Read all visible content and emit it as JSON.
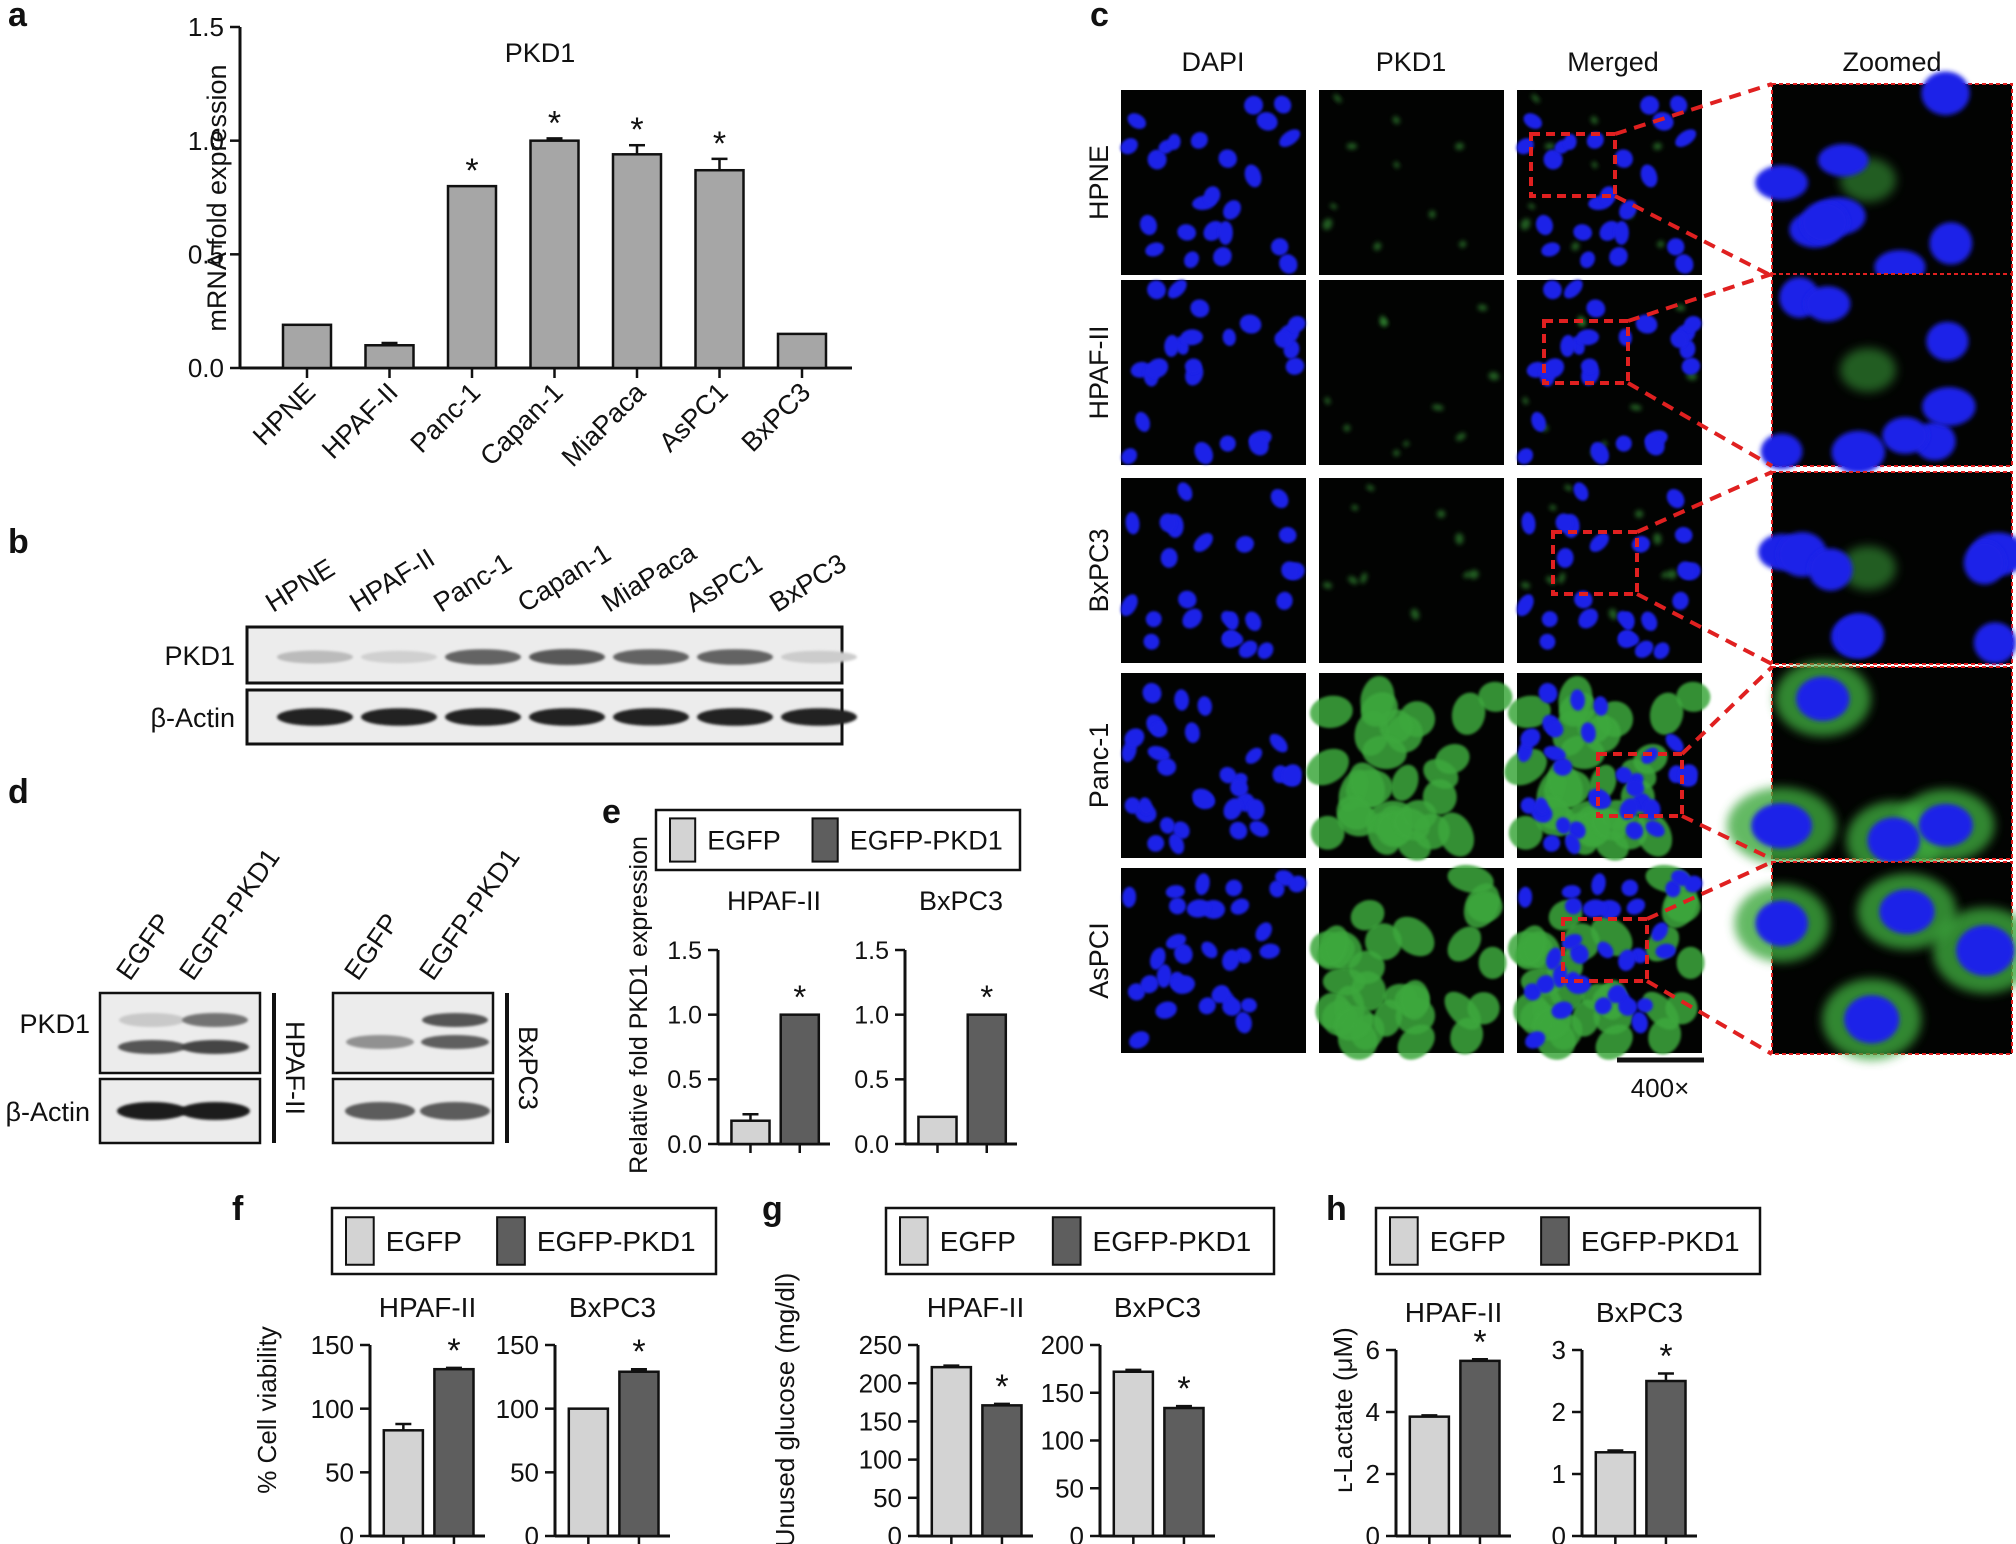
{
  "panels": {
    "a": "a",
    "b": "b",
    "c": "c",
    "d": "d",
    "e": "e",
    "f": "f",
    "g": "g",
    "h": "h"
  },
  "colors": {
    "bar_gray": "#a6a6a6",
    "egfp": "#d3d3d3",
    "egfp_pkd1": "#5e5e5e",
    "dapi_blue": "#1a22e8",
    "pkd1_green": "#3ea83e",
    "zoom_box": "#e02020"
  },
  "chart_data": [
    {
      "id": "a",
      "type": "bar",
      "title": "PKD1",
      "ylabel": "mRNA fold expression",
      "categories": [
        "HPNE",
        "HPAF-II",
        "Panc-1",
        "Capan-1",
        "MiaPaca",
        "AsPC1",
        "BxPC3"
      ],
      "values": [
        0.19,
        0.1,
        0.8,
        1.0,
        0.94,
        0.87,
        0.15
      ],
      "errors": [
        0,
        0.01,
        0,
        0.01,
        0.04,
        0.05,
        0
      ],
      "significant": [
        "",
        "",
        "*",
        "*",
        "*",
        "*",
        ""
      ],
      "ylim": [
        0,
        1.5
      ],
      "yticks": [
        "0.0",
        "0.5",
        "1.0",
        "1.5"
      ]
    },
    {
      "id": "e",
      "type": "bar",
      "ylabel": "Relative fold PKD1 expression",
      "legend": [
        "EGFP",
        "EGFP-PKD1"
      ],
      "ylim": [
        0,
        1.5
      ],
      "yticks": [
        "0.0",
        "0.5",
        "1.0",
        "1.5"
      ],
      "groups": [
        {
          "name": "HPAF-II",
          "values": [
            0.18,
            1.0
          ],
          "errors": [
            0.05,
            0
          ],
          "significant": [
            "",
            "*"
          ]
        },
        {
          "name": "BxPC3",
          "values": [
            0.21,
            1.0
          ],
          "errors": [
            0,
            0
          ],
          "significant": [
            "",
            "*"
          ]
        }
      ]
    },
    {
      "id": "f",
      "type": "bar",
      "ylabel": "% Cell viability",
      "legend": [
        "EGFP",
        "EGFP-PKD1"
      ],
      "groups": [
        {
          "name": "HPAF-II",
          "values": [
            83,
            131
          ],
          "errors": [
            5,
            1
          ],
          "significant": [
            "",
            "*"
          ],
          "ylim": [
            0,
            150
          ],
          "yticks": [
            "0",
            "50",
            "100",
            "150"
          ]
        },
        {
          "name": "BxPC3",
          "values": [
            100,
            129
          ],
          "errors": [
            0,
            2
          ],
          "significant": [
            "",
            "*"
          ],
          "ylim": [
            0,
            150
          ],
          "yticks": [
            "0",
            "50",
            "100",
            "150"
          ]
        }
      ]
    },
    {
      "id": "g",
      "type": "bar",
      "ylabel": "Unused glucose (mg/dl)",
      "legend": [
        "EGFP",
        "EGFP-PKD1"
      ],
      "groups": [
        {
          "name": "HPAF-II",
          "values": [
            221,
            171
          ],
          "errors": [
            2,
            2
          ],
          "significant": [
            "",
            "*"
          ],
          "ylim": [
            0,
            250
          ],
          "yticks": [
            "0",
            "50",
            "100",
            "150",
            "200",
            "250"
          ]
        },
        {
          "name": "BxPC3",
          "values": [
            172,
            134
          ],
          "errors": [
            2,
            2
          ],
          "significant": [
            "",
            "*"
          ],
          "ylim": [
            0,
            200
          ],
          "yticks": [
            "0",
            "50",
            "100",
            "150",
            "200"
          ]
        }
      ]
    },
    {
      "id": "h",
      "type": "bar",
      "ylabel": "ʟ-Lactate (μM)",
      "legend": [
        "EGFP",
        "EGFP-PKD1"
      ],
      "groups": [
        {
          "name": "HPAF-II",
          "values": [
            3.85,
            5.65
          ],
          "errors": [
            0.04,
            0.05
          ],
          "significant": [
            "",
            "*"
          ],
          "ylim": [
            0,
            6
          ],
          "yticks": [
            "0",
            "2",
            "4",
            "6"
          ]
        },
        {
          "name": "BxPC3",
          "values": [
            1.35,
            2.5
          ],
          "errors": [
            0.03,
            0.12
          ],
          "significant": [
            "",
            "*"
          ],
          "ylim": [
            0,
            3
          ],
          "yticks": [
            "0",
            "1",
            "2",
            "3"
          ]
        }
      ]
    }
  ],
  "panel_b": {
    "lanes": [
      "HPNE",
      "HPAF-II",
      "Panc-1",
      "Capan-1",
      "MiaPaca",
      "AsPC1",
      "BxPC3"
    ],
    "rows": [
      {
        "label": "PKD1",
        "intensity": [
          0.18,
          0.08,
          0.6,
          0.65,
          0.6,
          0.6,
          0.1
        ]
      },
      {
        "label": "β-Actin",
        "intensity": [
          0.92,
          0.92,
          0.92,
          0.92,
          0.92,
          0.92,
          0.92
        ]
      }
    ]
  },
  "panel_d": {
    "lanes": [
      "EGFP",
      "EGFP-PKD1"
    ],
    "blots": [
      {
        "cell_line": "HPAF-II",
        "pkd1_upper": [
          0.12,
          0.55
        ],
        "pkd1_lower": [
          0.7,
          0.78
        ],
        "actin": [
          0.95,
          0.95
        ]
      },
      {
        "cell_line": "BxPC3",
        "pkd1_upper": [
          0.0,
          0.7
        ],
        "pkd1_lower": [
          0.4,
          0.65
        ],
        "actin": [
          0.65,
          0.65
        ]
      }
    ],
    "row_labels": [
      "PKD1",
      "β-Actin"
    ]
  },
  "panel_c": {
    "columns": [
      "DAPI",
      "PKD1",
      "Merged",
      "Zoomed"
    ],
    "rows": [
      {
        "label": "HPNE",
        "green": 0.08
      },
      {
        "label": "HPAF-II",
        "green": 0.1
      },
      {
        "label": "BxPC3",
        "green": 0.08
      },
      {
        "label": "Panc-1",
        "green": 0.85
      },
      {
        "label": "AsPCI",
        "green": 0.8
      }
    ],
    "scale_label": "400×"
  }
}
